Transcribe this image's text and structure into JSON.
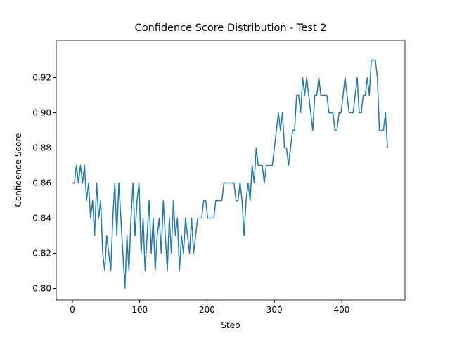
{
  "chart_data": {
    "type": "line",
    "title": "Confidence Score Distribution - Test 2",
    "x_label": "Step",
    "y_label": "Confidence Score",
    "x": [
      0,
      3,
      6,
      9,
      12,
      15,
      18,
      21,
      24,
      27,
      30,
      33,
      36,
      39,
      42,
      45,
      48,
      51,
      54,
      57,
      60,
      63,
      66,
      69,
      72,
      75,
      78,
      81,
      84,
      87,
      90,
      93,
      96,
      99,
      102,
      105,
      108,
      111,
      114,
      117,
      120,
      123,
      126,
      129,
      132,
      135,
      138,
      141,
      144,
      147,
      150,
      153,
      156,
      159,
      162,
      165,
      168,
      171,
      174,
      177,
      180,
      183,
      186,
      189,
      192,
      195,
      198,
      201,
      204,
      207,
      210,
      213,
      216,
      219,
      222,
      225,
      228,
      231,
      234,
      237,
      240,
      243,
      246,
      249,
      252,
      255,
      258,
      261,
      264,
      267,
      270,
      273,
      276,
      279,
      282,
      285,
      288,
      291,
      294,
      297,
      300,
      303,
      306,
      309,
      312,
      315,
      318,
      321,
      324,
      327,
      330,
      333,
      336,
      339,
      342,
      345,
      348,
      351,
      354,
      357,
      360,
      363,
      366,
      369,
      372,
      375,
      378,
      381,
      384,
      387,
      390,
      393,
      396,
      399,
      402,
      405,
      408,
      411,
      414,
      417,
      420,
      423,
      426,
      429,
      432,
      435,
      438,
      441,
      444,
      447,
      450,
      453,
      456,
      459,
      462,
      465,
      468
    ],
    "series": [
      {
        "color": "#1f77b4",
        "values": [
          0.86,
          0.86,
          0.87,
          0.86,
          0.87,
          0.86,
          0.87,
          0.85,
          0.86,
          0.84,
          0.85,
          0.83,
          0.86,
          0.84,
          0.85,
          0.82,
          0.81,
          0.83,
          0.82,
          0.81,
          0.84,
          0.86,
          0.83,
          0.86,
          0.84,
          0.82,
          0.8,
          0.83,
          0.81,
          0.84,
          0.86,
          0.83,
          0.85,
          0.86,
          0.82,
          0.84,
          0.81,
          0.83,
          0.85,
          0.82,
          0.84,
          0.81,
          0.83,
          0.84,
          0.82,
          0.85,
          0.83,
          0.81,
          0.84,
          0.82,
          0.85,
          0.83,
          0.84,
          0.81,
          0.83,
          0.82,
          0.84,
          0.83,
          0.82,
          0.84,
          0.82,
          0.83,
          0.84,
          0.84,
          0.84,
          0.85,
          0.85,
          0.84,
          0.84,
          0.84,
          0.84,
          0.85,
          0.85,
          0.85,
          0.85,
          0.86,
          0.86,
          0.86,
          0.86,
          0.86,
          0.86,
          0.85,
          0.85,
          0.86,
          0.85,
          0.83,
          0.85,
          0.86,
          0.85,
          0.87,
          0.86,
          0.88,
          0.87,
          0.87,
          0.87,
          0.86,
          0.87,
          0.87,
          0.87,
          0.87,
          0.88,
          0.89,
          0.9,
          0.89,
          0.9,
          0.88,
          0.88,
          0.87,
          0.88,
          0.89,
          0.89,
          0.91,
          0.91,
          0.9,
          0.92,
          0.91,
          0.92,
          0.91,
          0.9,
          0.89,
          0.91,
          0.91,
          0.92,
          0.91,
          0.91,
          0.91,
          0.91,
          0.9,
          0.9,
          0.9,
          0.89,
          0.89,
          0.9,
          0.9,
          0.91,
          0.92,
          0.91,
          0.9,
          0.9,
          0.9,
          0.91,
          0.92,
          0.9,
          0.9,
          0.91,
          0.91,
          0.92,
          0.91,
          0.93,
          0.93,
          0.93,
          0.92,
          0.89,
          0.89,
          0.89,
          0.9,
          0.88
        ]
      }
    ],
    "xlim": [
      -24,
      494
    ],
    "ylim": [
      0.7934,
      0.941
    ],
    "xticks": [
      0,
      100,
      200,
      300,
      400
    ],
    "yticks": [
      {
        "value": 0.8,
        "label": "0.80"
      },
      {
        "value": 0.82,
        "label": "0.82"
      },
      {
        "value": 0.84,
        "label": "0.84"
      },
      {
        "value": 0.86,
        "label": "0.86"
      },
      {
        "value": 0.88,
        "label": "0.88"
      },
      {
        "value": 0.9,
        "label": "0.90"
      },
      {
        "value": 0.92,
        "label": "0.92"
      }
    ]
  }
}
